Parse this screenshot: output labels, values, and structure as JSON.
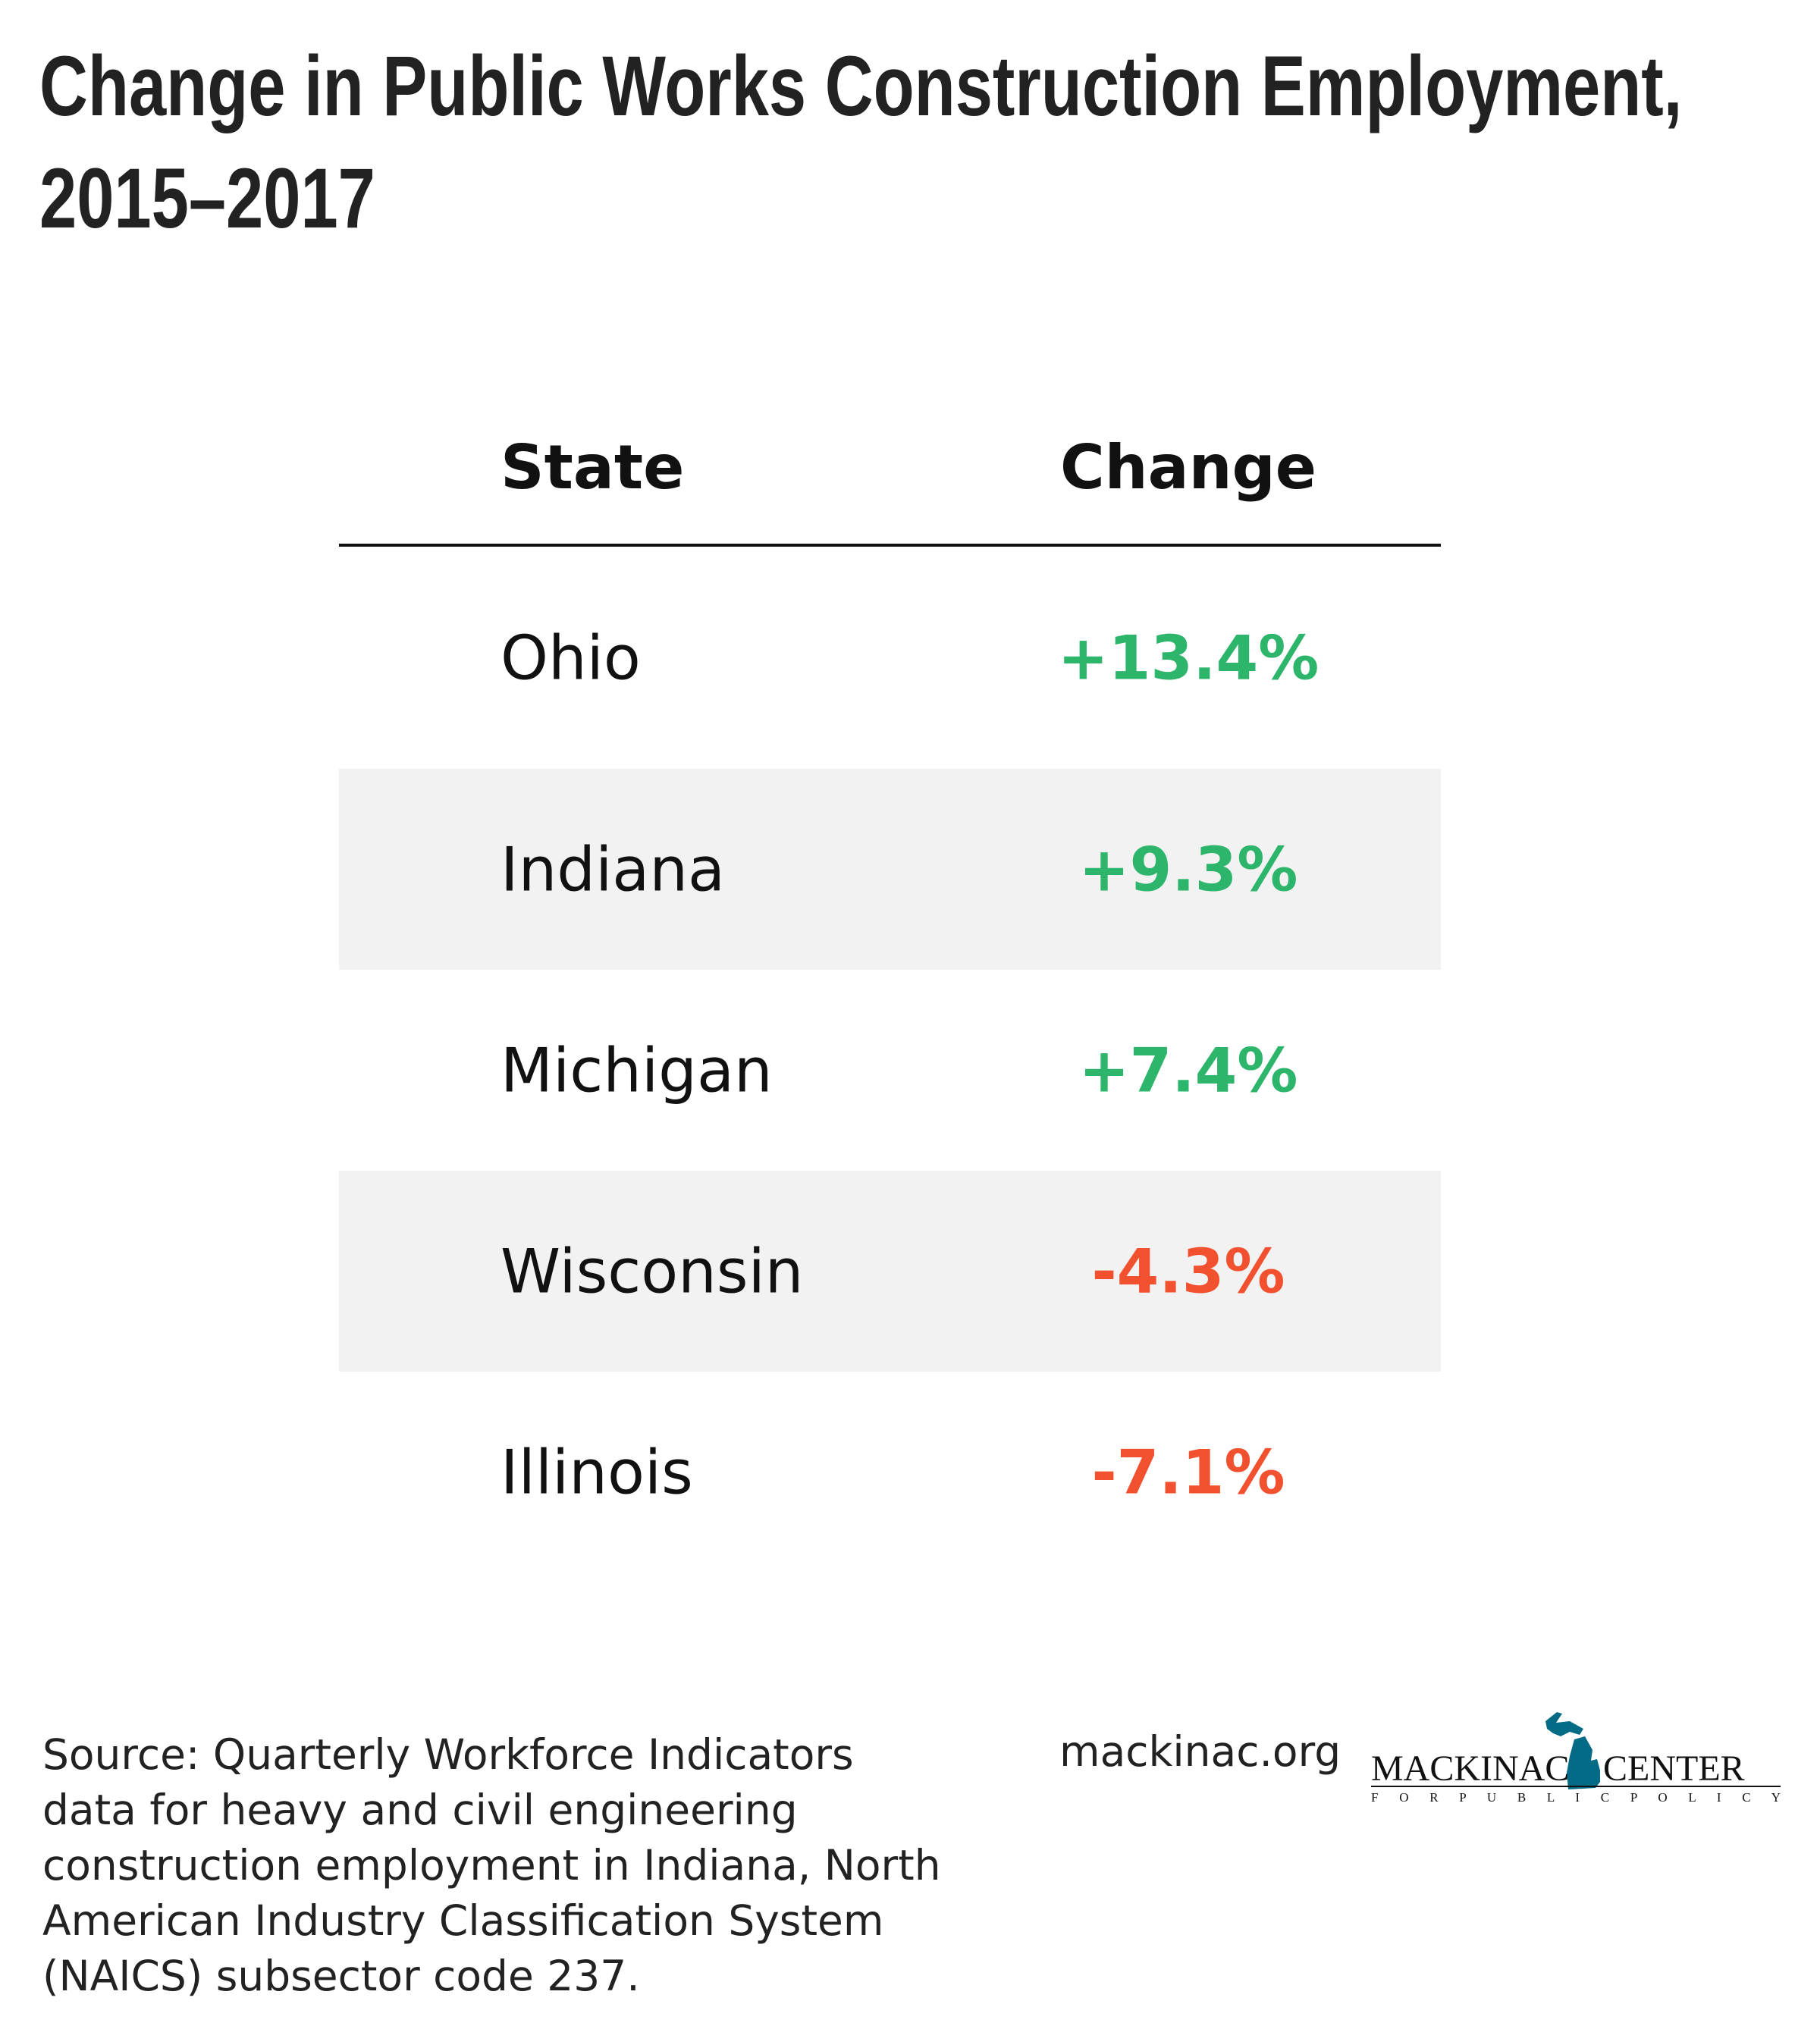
{
  "title": "Change in Public Works Construction Employment, 2015–2017",
  "table": {
    "headers": [
      "State",
      "Change"
    ],
    "rows": [
      {
        "state": "Ohio",
        "change": "+13.4%"
      },
      {
        "state": "Indiana",
        "change": "+9.3%"
      },
      {
        "state": "Michigan",
        "change": "+7.4%"
      },
      {
        "state": "Wisconsin",
        "change": "-4.3%"
      },
      {
        "state": "Illinois",
        "change": "-7.1%"
      }
    ]
  },
  "colors": {
    "positive": "#2db56b",
    "negative": "#f1512f",
    "stripe": "#f2f2f2",
    "logo": "#036b85"
  },
  "footer": {
    "source": "Source: Quarterly Workforce Indicators data for heavy and civil engineering construction employment in Indiana, North American Industry Classification System (NAICS) subsector code 237.",
    "website": "mackinac.org",
    "logo": {
      "name": "MACKINAC CENTER",
      "tagline": "FOR PUBLIC POLICY",
      "icon": "michigan-map-icon"
    }
  }
}
